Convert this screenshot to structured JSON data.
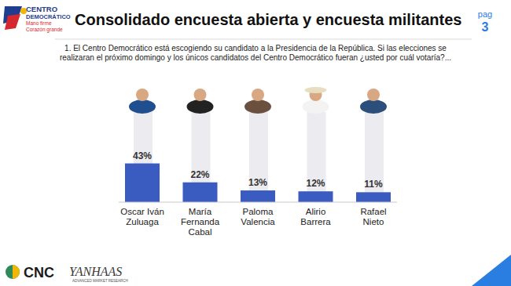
{
  "chart_data": {
    "type": "bar",
    "title": "Consolidado encuesta abierta y encuesta militantes",
    "subtitle": "1. El Centro Democrático está escogiendo su candidato a la  Presidencia de la República. Si las elecciones se realizaran el próximo domingo y los únicos candidatos del Centro Democrático fueran ¿usted por cuál votaría?...",
    "categories": [
      "Oscar Iván Zuluaga",
      "María Fernanda Cabal",
      "Paloma Valencia",
      "Alirio Barrera",
      "Rafael Nieto"
    ],
    "values": [
      43,
      22,
      13,
      12,
      11
    ],
    "value_labels": [
      "43%",
      "22%",
      "13%",
      "12%",
      "11%"
    ],
    "color": "#3a5bbf",
    "ylim": [
      0,
      100
    ],
    "grid": false,
    "data_labels": true,
    "tick_labels": "x",
    "annotations": [
      "CENTRO",
      "DEMOCRÁTICO",
      "Mano firme",
      "Corazón grande",
      "pag",
      "3",
      "CNC",
      "YANHAAS",
      "ADVANCED MARKET RESEARCH"
    ]
  }
}
